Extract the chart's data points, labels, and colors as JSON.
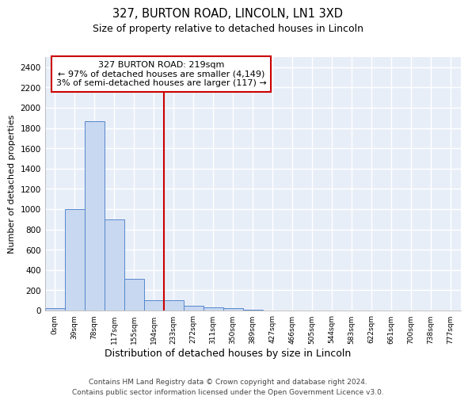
{
  "title_line1": "327, BURTON ROAD, LINCOLN, LN1 3XD",
  "title_line2": "Size of property relative to detached houses in Lincoln",
  "xlabel": "Distribution of detached houses by size in Lincoln",
  "ylabel": "Number of detached properties",
  "bin_labels": [
    "0sqm",
    "39sqm",
    "78sqm",
    "117sqm",
    "155sqm",
    "194sqm",
    "233sqm",
    "272sqm",
    "311sqm",
    "350sqm",
    "389sqm",
    "427sqm",
    "466sqm",
    "505sqm",
    "544sqm",
    "583sqm",
    "622sqm",
    "661sqm",
    "700sqm",
    "738sqm",
    "777sqm"
  ],
  "bar_values": [
    20,
    1000,
    1870,
    900,
    310,
    100,
    100,
    45,
    30,
    25,
    5,
    2,
    1,
    0,
    0,
    0,
    0,
    0,
    0,
    0,
    0
  ],
  "bar_color": "#c8d8f0",
  "bar_edge_color": "#5588cc",
  "bar_width": 1.0,
  "vline_x": 6.0,
  "vline_color": "#cc0000",
  "ylim": [
    0,
    2500
  ],
  "yticks": [
    0,
    200,
    400,
    600,
    800,
    1000,
    1200,
    1400,
    1600,
    1800,
    2000,
    2200,
    2400
  ],
  "annotation_text": "327 BURTON ROAD: 219sqm\n← 97% of detached houses are smaller (4,149)\n3% of semi-detached houses are larger (117) →",
  "annotation_box_color": "white",
  "annotation_box_edge": "#cc0000",
  "footer_line1": "Contains HM Land Registry data © Crown copyright and database right 2024.",
  "footer_line2": "Contains public sector information licensed under the Open Government Licence v3.0.",
  "bg_color": "#ffffff",
  "plot_bg_color": "#e8eef8",
  "grid_color": "#ffffff"
}
